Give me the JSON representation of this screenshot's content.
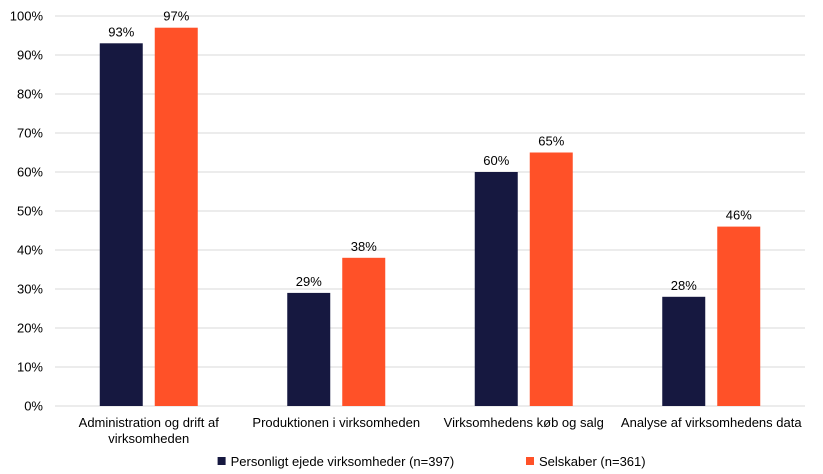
{
  "chart_data": {
    "type": "bar",
    "categories": [
      [
        "Administration og drift af",
        "virksomheden"
      ],
      [
        "Produktionen i virksomheden"
      ],
      [
        "Virksomhedens køb og salg"
      ],
      [
        "Analyse af virksomhedens data"
      ]
    ],
    "series": [
      {
        "name": "Personligt ejede virksomheder (n=397)",
        "values": [
          93,
          29,
          60,
          28
        ],
        "labels": [
          "93%",
          "29%",
          "60%",
          "28%"
        ],
        "color": "#161840"
      },
      {
        "name": "Selskaber (n=361)",
        "values": [
          97,
          38,
          65,
          46
        ],
        "labels": [
          "97%",
          "38%",
          "65%",
          "46%"
        ],
        "color": "#ff5128"
      }
    ],
    "y_ticks": [
      "0%",
      "10%",
      "20%",
      "30%",
      "40%",
      "50%",
      "60%",
      "70%",
      "80%",
      "90%",
      "100%"
    ],
    "ylim": [
      0,
      100
    ],
    "grid": true,
    "gridline_color": "#d9d9d9",
    "legend_position": "bottom"
  }
}
